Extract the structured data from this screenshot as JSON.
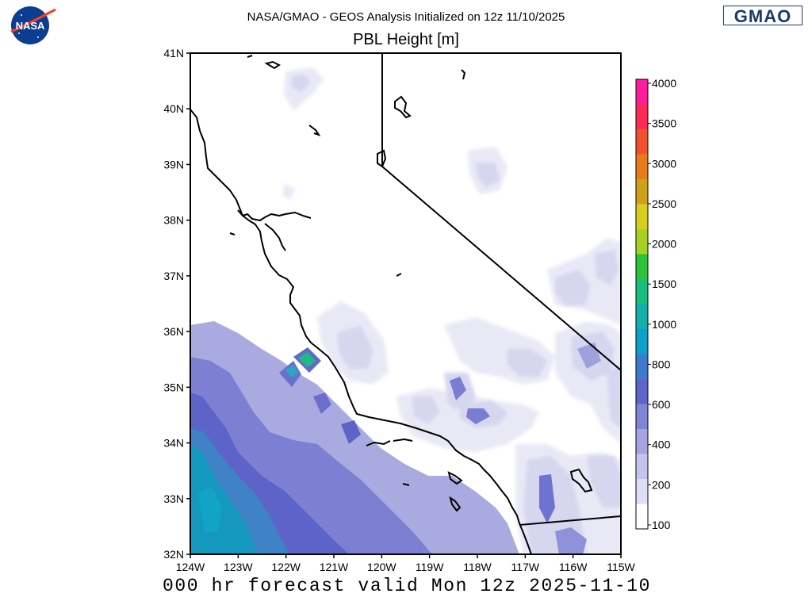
{
  "header": {
    "title_line1": "NASA/GMAO - GEOS Analysis Initialized on 12z 11/10/2025",
    "title_line2": "PBL Height [m]",
    "nasa_logo_text": "NASA",
    "gmao_logo_text": "GMAO"
  },
  "footer": {
    "valid_text": "000 hr forecast valid Mon 12z 2025-11-10"
  },
  "map": {
    "lon_range": [
      -124,
      -115
    ],
    "lat_range": [
      32,
      41
    ],
    "lat_labels": [
      "41N",
      "40N",
      "39N",
      "38N",
      "37N",
      "36N",
      "35N",
      "34N",
      "33N",
      "32N"
    ],
    "lon_labels": [
      "124W",
      "123W",
      "122W",
      "121W",
      "120W",
      "119W",
      "118W",
      "117W",
      "116W",
      "115W"
    ],
    "field": "PBL Height [m]",
    "land_color": "#ffffff",
    "coastline_color": "#000000"
  },
  "colorbar": {
    "labels": [
      "4000",
      "3500",
      "3000",
      "2500",
      "2000",
      "1500",
      "1000",
      "800",
      "600",
      "400",
      "200",
      "100"
    ],
    "colors": [
      "#ff1c9a",
      "#ff2a55",
      "#f0522d",
      "#e87a1e",
      "#cfa119",
      "#d6cf1e",
      "#a7d223",
      "#2cc23a",
      "#19be7d",
      "#12b0ab",
      "#0fa0c8",
      "#3d7bd0",
      "#5b65cc",
      "#7f86d6",
      "#a5a6e0",
      "#c4c5ec",
      "#dedef4",
      "#ffffff"
    ]
  }
}
